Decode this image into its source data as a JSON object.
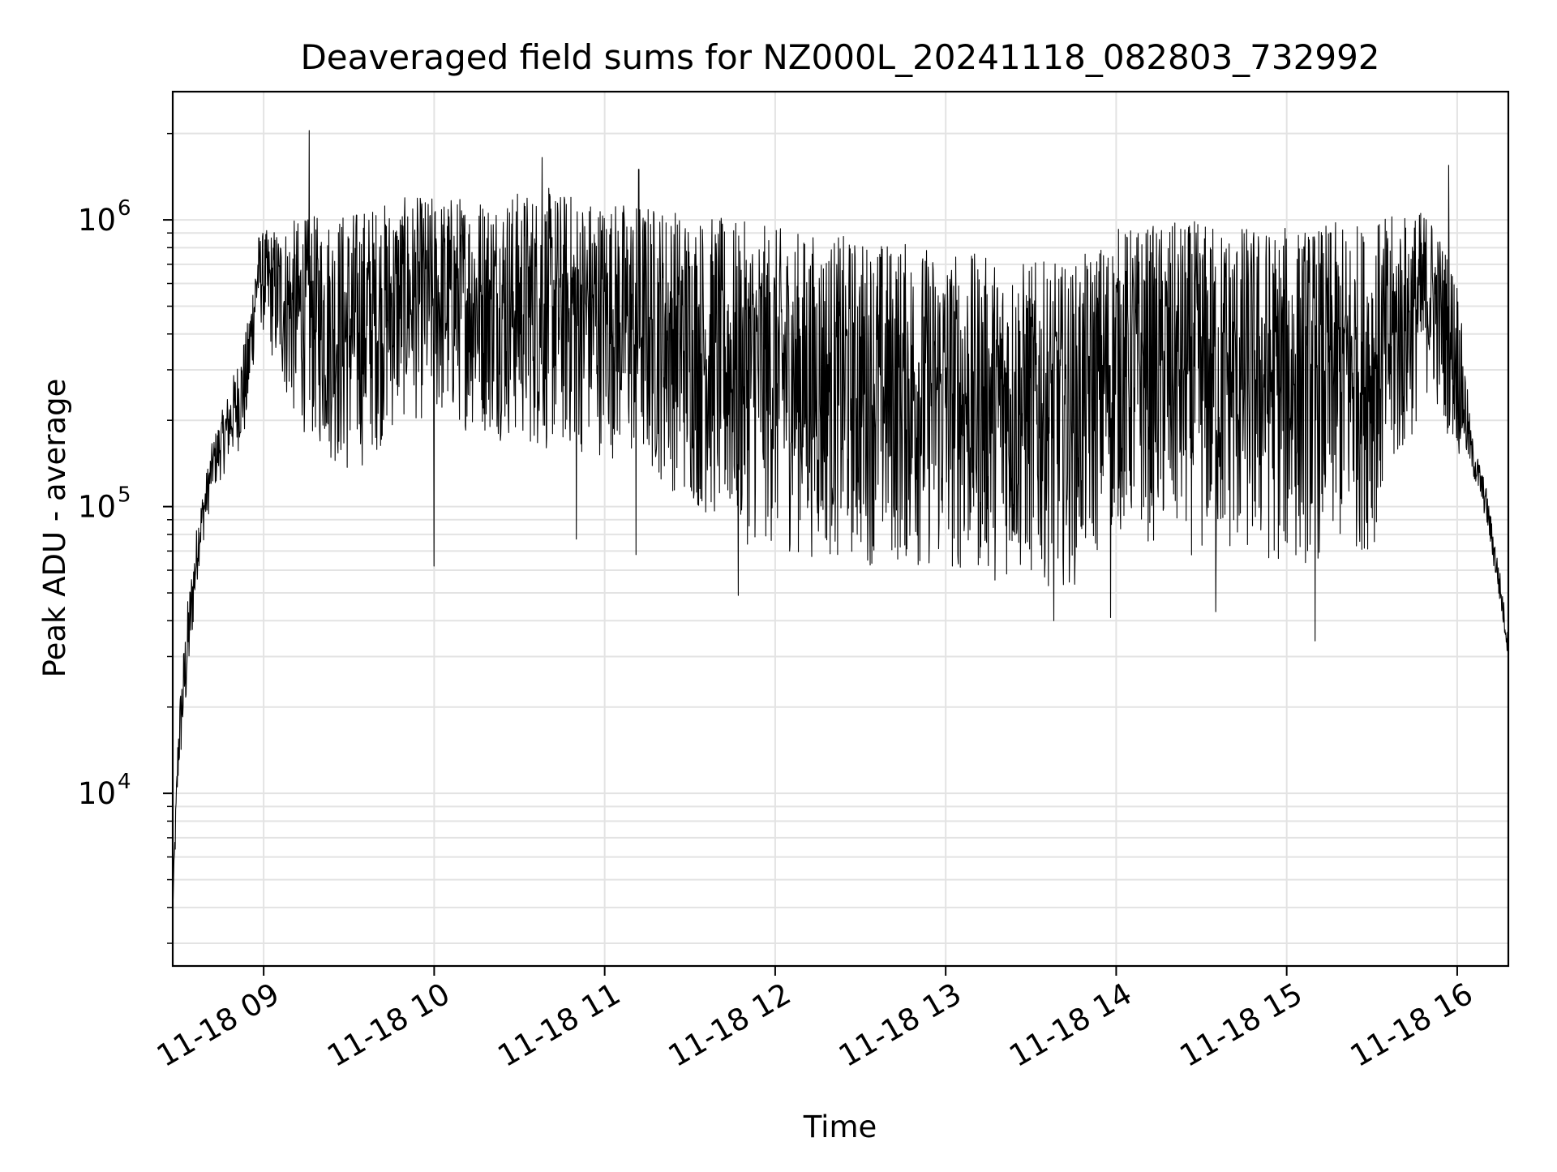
{
  "chart_data": {
    "type": "line",
    "title": "Deaveraged field sums for NZ000L_20241118_082803_732992",
    "xlabel": "Time",
    "ylabel": "Peak ADU - average",
    "x_axis": {
      "kind": "time",
      "range": [
        "2024-11-18T08:28",
        "2024-11-18T16:18"
      ],
      "ticks": [
        {
          "value": "2024-11-18T09:00",
          "label": "11-18 09"
        },
        {
          "value": "2024-11-18T10:00",
          "label": "11-18 10"
        },
        {
          "value": "2024-11-18T11:00",
          "label": "11-18 11"
        },
        {
          "value": "2024-11-18T12:00",
          "label": "11-18 12"
        },
        {
          "value": "2024-11-18T13:00",
          "label": "11-18 13"
        },
        {
          "value": "2024-11-18T14:00",
          "label": "11-18 14"
        },
        {
          "value": "2024-11-18T15:00",
          "label": "11-18 15"
        },
        {
          "value": "2024-11-18T16:00",
          "label": "11-18 16"
        }
      ]
    },
    "y_axis": {
      "scale": "log",
      "range": [
        2500,
        2800000
      ],
      "ticks": [
        {
          "value": 10000,
          "base": "10",
          "exp": "4"
        },
        {
          "value": 100000,
          "base": "10",
          "exp": "5"
        },
        {
          "value": 1000000,
          "base": "10",
          "exp": "6"
        }
      ]
    },
    "grid": true,
    "series": [
      {
        "color": "#000000",
        "envelope": [
          {
            "t": "2024-11-18T08:28",
            "low": 3800,
            "high": 4200
          },
          {
            "t": "2024-11-18T08:30",
            "low": 10500,
            "high": 19000
          },
          {
            "t": "2024-11-18T08:33",
            "low": 20000,
            "high": 45000
          },
          {
            "t": "2024-11-18T08:37",
            "low": 60000,
            "high": 95000
          },
          {
            "t": "2024-11-18T08:42",
            "low": 110000,
            "high": 170000
          },
          {
            "t": "2024-11-18T08:48",
            "low": 140000,
            "high": 260000
          },
          {
            "t": "2024-11-18T08:54",
            "low": 170000,
            "high": 420000
          },
          {
            "t": "2024-11-18T08:58",
            "low": 450000,
            "high": 900000
          },
          {
            "t": "2024-11-18T09:10",
            "low": 200000,
            "high": 1000000
          },
          {
            "t": "2024-11-18T09:30",
            "low": 120000,
            "high": 1100000
          },
          {
            "t": "2024-11-18T09:50",
            "low": 200000,
            "high": 1200000
          },
          {
            "t": "2024-11-18T10:15",
            "low": 180000,
            "high": 1250000
          },
          {
            "t": "2024-11-18T10:40",
            "low": 150000,
            "high": 1300000
          },
          {
            "t": "2024-11-18T11:00",
            "low": 150000,
            "high": 1200000
          },
          {
            "t": "2024-11-18T11:20",
            "low": 120000,
            "high": 1150000
          },
          {
            "t": "2024-11-18T11:45",
            "low": 75000,
            "high": 1000000
          },
          {
            "t": "2024-11-18T12:15",
            "low": 65000,
            "high": 900000
          },
          {
            "t": "2024-11-18T12:45",
            "low": 60000,
            "high": 850000
          },
          {
            "t": "2024-11-18T13:15",
            "low": 55000,
            "high": 750000
          },
          {
            "t": "2024-11-18T13:45",
            "low": 52000,
            "high": 700000
          },
          {
            "t": "2024-11-18T14:00",
            "low": 80000,
            "high": 950000
          },
          {
            "t": "2024-11-18T14:30",
            "low": 65000,
            "high": 1000000
          },
          {
            "t": "2024-11-18T15:00",
            "low": 60000,
            "high": 950000
          },
          {
            "t": "2024-11-18T15:30",
            "low": 70000,
            "high": 1000000
          },
          {
            "t": "2024-11-18T15:50",
            "low": 250000,
            "high": 1100000
          },
          {
            "t": "2024-11-18T16:00",
            "low": 150000,
            "high": 650000
          },
          {
            "t": "2024-11-18T16:05",
            "low": 130000,
            "high": 180000
          },
          {
            "t": "2024-11-18T16:10",
            "low": 90000,
            "high": 120000
          },
          {
            "t": "2024-11-18T16:15",
            "low": 45000,
            "high": 60000
          },
          {
            "t": "2024-11-18T16:18",
            "low": 29000,
            "high": 35000
          }
        ],
        "spikes": [
          {
            "t": "2024-11-18T09:16",
            "value": 2050000
          },
          {
            "t": "2024-11-18T10:38",
            "value": 1650000
          },
          {
            "t": "2024-11-18T11:12",
            "value": 1500000
          },
          {
            "t": "2024-11-18T15:57",
            "value": 1550000
          },
          {
            "t": "2024-11-18T10:00",
            "value": 62000
          },
          {
            "t": "2024-11-18T10:50",
            "value": 77000
          },
          {
            "t": "2024-11-18T11:11",
            "value": 68000
          },
          {
            "t": "2024-11-18T13:38",
            "value": 40000
          },
          {
            "t": "2024-11-18T13:58",
            "value": 41000
          },
          {
            "t": "2024-11-18T15:10",
            "value": 34000
          },
          {
            "t": "2024-11-18T14:35",
            "value": 43000
          },
          {
            "t": "2024-11-18T11:47",
            "value": 49000
          }
        ]
      }
    ]
  }
}
